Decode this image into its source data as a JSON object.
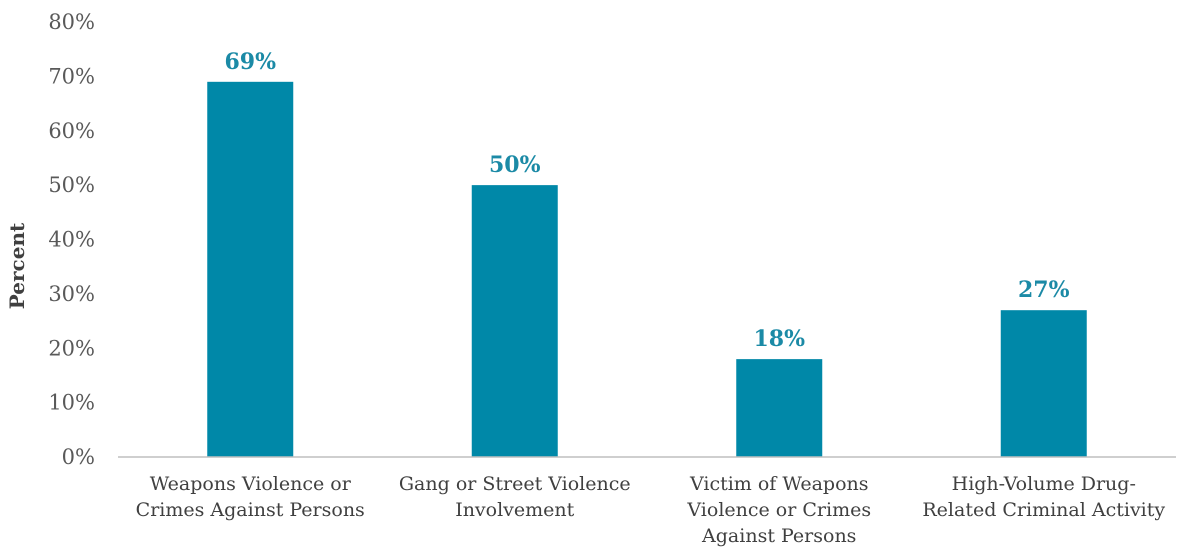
{
  "chart_data": {
    "type": "bar",
    "title": "",
    "xlabel": "",
    "ylabel": "Percent",
    "ylim": [
      0,
      80
    ],
    "ytick_step": 10,
    "ytick_suffix": "%",
    "grid": false,
    "legend": "none",
    "categories": [
      [
        "Weapons Violence or",
        "Crimes Against Persons"
      ],
      [
        "Gang or Street Violence",
        "Involvement"
      ],
      [
        "Victim of Weapons",
        "Violence or Crimes",
        "Against Persons"
      ],
      [
        "High-Volume Drug-",
        "Related Criminal Activity"
      ]
    ],
    "values": [
      69,
      50,
      18,
      27
    ],
    "data_labels": [
      "69%",
      "50%",
      "18%",
      "27%"
    ],
    "colors": {
      "bar": "#0088A8",
      "data_label": "#1B8AA6",
      "axis": "#BFBFBF"
    }
  }
}
